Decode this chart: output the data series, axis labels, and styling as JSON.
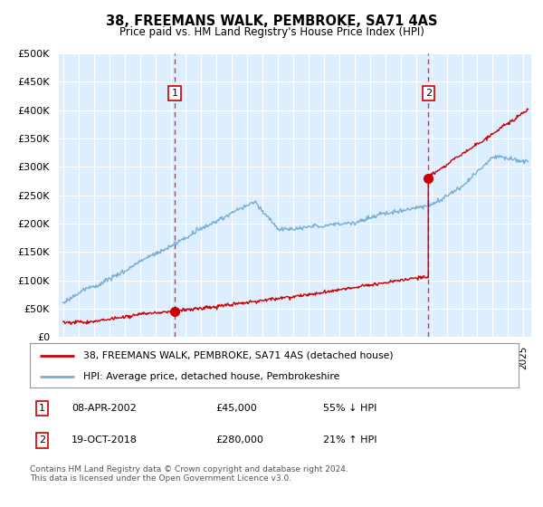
{
  "title": "38, FREEMANS WALK, PEMBROKE, SA71 4AS",
  "subtitle": "Price paid vs. HM Land Registry's House Price Index (HPI)",
  "ytick_values": [
    0,
    50000,
    100000,
    150000,
    200000,
    250000,
    300000,
    350000,
    400000,
    450000,
    500000
  ],
  "ylim": [
    0,
    500000
  ],
  "xlim_start": 1994.7,
  "xlim_end": 2025.5,
  "sale1_year": 2002.27,
  "sale1_price": 45000,
  "sale2_year": 2018.8,
  "sale2_price": 280000,
  "red_color": "#cc0000",
  "blue_color": "#7aadd4",
  "bg_color": "#ddeeff",
  "grid_color": "#ffffff",
  "dashed_line_color": "#dd3333",
  "legend_line1": "38, FREEMANS WALK, PEMBROKE, SA71 4AS (detached house)",
  "legend_line2": "HPI: Average price, detached house, Pembrokeshire",
  "annotation1_date": "08-APR-2002",
  "annotation1_price": "£45,000",
  "annotation1_pct": "55% ↓ HPI",
  "annotation2_date": "19-OCT-2018",
  "annotation2_price": "£280,000",
  "annotation2_pct": "21% ↑ HPI",
  "footer": "Contains HM Land Registry data © Crown copyright and database right 2024.\nThis data is licensed under the Open Government Licence v3.0."
}
